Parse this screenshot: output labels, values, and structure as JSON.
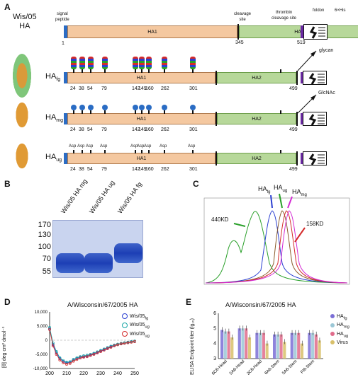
{
  "panelA": {
    "label": "A",
    "strain": "Wis/05\nHA",
    "signal_peptide": "signal\npeptide",
    "cleavage_site": "cleavage\nsite",
    "thrombin": "thrombin\ncleavage site",
    "foldon": "foldon",
    "his": "6×His",
    "glycan": "glycan",
    "glcnac": "GlcNAc",
    "ha1": "HA1",
    "ha2": "HA2",
    "pos_start": "1",
    "pos_cleave": "345",
    "pos_end": "519",
    "constructs": [
      {
        "name": "HA",
        "sub": "fg",
        "end": "499"
      },
      {
        "name": "HA",
        "sub": "mg",
        "end": "499"
      },
      {
        "name": "HA",
        "sub": "ug",
        "end": "499"
      }
    ],
    "sites": [
      "24",
      "38",
      "54",
      "79",
      "142",
      "149",
      "160",
      "262",
      "301"
    ],
    "sites_ug": [
      "24",
      "38",
      "54",
      "79",
      "142",
      "149",
      "160",
      "262",
      "301"
    ],
    "asp": "Asp"
  },
  "panelB": {
    "label": "B",
    "lanes": [
      "Wis/05 HA mg",
      "Wis/05 HA ug",
      "Wis/05 HA fg"
    ],
    "markers": [
      "170",
      "130",
      "100",
      "70",
      "55"
    ]
  },
  "panelC": {
    "label": "C",
    "peak_labels": {
      "fg": "HA",
      "fg_sub": "fg",
      "ug": "HA",
      "ug_sub": "ug",
      "mg": "HA",
      "mg_sub": "mg"
    },
    "kd_440": "440KD",
    "kd_158": "158KD"
  },
  "panelD": {
    "label": "D",
    "title": "A/Wisconsin/67/2005 HA",
    "ylabel": "[θ] deg cm² dmol⁻¹",
    "yticks": [
      "10,000",
      "5,000",
      "0",
      "-5,000",
      "-10,000"
    ],
    "xticks": [
      "200",
      "210",
      "220",
      "230",
      "240",
      "250"
    ],
    "legend": [
      {
        "name": "Wis/05",
        "sub": "fg",
        "color": "#2a3fd1"
      },
      {
        "name": "Wis/05",
        "sub": "ug",
        "color": "#1aa6a6"
      },
      {
        "name": "Wis/05",
        "sub": "ug",
        "color": "#d42a2a"
      }
    ]
  },
  "panelE": {
    "label": "E",
    "title": "A/Wisconsin/67/2005 HA",
    "ylabel": "ELISA Endpoint titer (lg₁₀)",
    "yticks": [
      "6",
      "5",
      "4",
      "3"
    ],
    "categories": [
      "6C6-Head",
      "5A6-Head",
      "3C8-Head",
      "6A6-Stem",
      "5A6-Stem",
      "FI6-Stem"
    ],
    "legend": [
      {
        "name": "HA",
        "sub": "fg",
        "color": "#7b6fd6"
      },
      {
        "name": "HA",
        "sub": "mg",
        "color": "#9bc7d6"
      },
      {
        "name": "HA",
        "sub": "ug",
        "color": "#e06b8b"
      },
      {
        "name": "Virus",
        "sub": "",
        "color": "#d8c06a"
      }
    ]
  },
  "chart_data": [
    {
      "type": "line",
      "title": "A/Wisconsin/67/2005 HA",
      "xlabel": "",
      "ylabel": "[θ] deg cm² dmol⁻¹",
      "xlim": [
        200,
        250
      ],
      "ylim": [
        -10000,
        10000
      ],
      "x": [
        200,
        202,
        204,
        206,
        208,
        210,
        212,
        214,
        216,
        218,
        220,
        222,
        224,
        226,
        228,
        230,
        232,
        234,
        236,
        238,
        240,
        242,
        244,
        246,
        248,
        250
      ],
      "series": [
        {
          "name": "Wis/05 fg",
          "values": [
            4000,
            -1500,
            -4500,
            -6500,
            -7500,
            -8000,
            -7800,
            -7000,
            -6500,
            -6000,
            -5800,
            -5600,
            -5200,
            -4800,
            -4300,
            -3800,
            -3300,
            -2800,
            -2300,
            -1900,
            -1500,
            -1200,
            -1000,
            -800,
            -600,
            -400
          ]
        },
        {
          "name": "Wis/05 ug",
          "values": [
            4500,
            -1000,
            -4000,
            -6200,
            -7200,
            -7800,
            -7600,
            -6800,
            -6200,
            -5800,
            -5500,
            -5300,
            -5000,
            -4600,
            -4100,
            -3600,
            -3100,
            -2600,
            -2100,
            -1700,
            -1400,
            -1100,
            -900,
            -700,
            -500,
            -300
          ]
        },
        {
          "name": "Wis/05 ug",
          "values": [
            3800,
            -2000,
            -5000,
            -7000,
            -8000,
            -8500,
            -8200,
            -7400,
            -6800,
            -6300,
            -6000,
            -5800,
            -5400,
            -5000,
            -4500,
            -4000,
            -3500,
            -3000,
            -2500,
            -2000,
            -1600,
            -1300,
            -1100,
            -900,
            -700,
            -500
          ]
        }
      ]
    },
    {
      "type": "bar",
      "title": "A/Wisconsin/67/2005 HA",
      "ylabel": "ELISA Endpoint titer (lg₁₀)",
      "ylim": [
        3,
        6
      ],
      "categories": [
        "6C6-Head",
        "5A6-Head",
        "3C8-Head",
        "6A6-Stem",
        "5A6-Stem",
        "FI6-Stem"
      ],
      "series": [
        {
          "name": "HA fg",
          "values": [
            4.9,
            5.0,
            4.7,
            4.6,
            4.7,
            4.7
          ]
        },
        {
          "name": "HA mg",
          "values": [
            4.8,
            5.0,
            4.7,
            4.6,
            4.7,
            4.7
          ]
        },
        {
          "name": "HA ug",
          "values": [
            4.8,
            5.0,
            4.7,
            4.6,
            4.7,
            4.6
          ]
        },
        {
          "name": "Virus",
          "values": [
            4.4,
            4.4,
            4.0,
            4.1,
            4.0,
            4.2
          ]
        }
      ]
    }
  ]
}
